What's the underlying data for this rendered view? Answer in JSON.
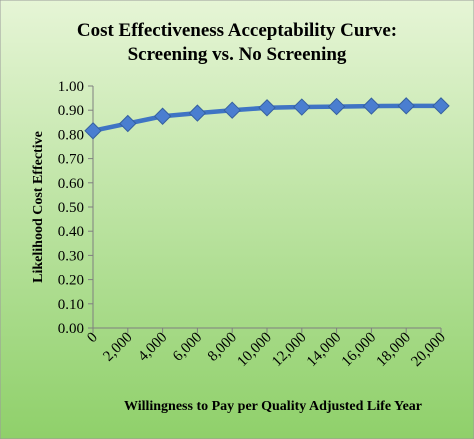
{
  "colors": {
    "background_top": "#e6f5d6",
    "background_bottom": "#8fd06a",
    "series_line": "#3f74c4",
    "series_marker": "#4a7ed0",
    "axis": "#7f7f7f"
  },
  "chart_data": {
    "type": "line",
    "title": [
      "Cost Effectiveness Acceptability Curve:",
      "Screening vs. No Screening"
    ],
    "xlabel": "Willingness to Pay per Quality Adjusted Life Year",
    "ylabel": "Likelihood Cost Effective",
    "ylim": [
      0,
      1
    ],
    "ytick_step": 0.1,
    "grid": false,
    "legend": "none",
    "categories": [
      "0",
      "2,000",
      "4,000",
      "6,000",
      "8,000",
      "10,000",
      "12,000",
      "14,000",
      "16,000",
      "18,000",
      "20,000"
    ],
    "yticks": [
      "0.00",
      "0.10",
      "0.20",
      "0.30",
      "0.40",
      "0.50",
      "0.60",
      "0.70",
      "0.80",
      "0.90",
      "1.00"
    ],
    "series": [
      {
        "marker": "diamond",
        "values": [
          0.815,
          0.845,
          0.875,
          0.888,
          0.9,
          0.91,
          0.913,
          0.915,
          0.917,
          0.918,
          0.918
        ]
      }
    ]
  }
}
